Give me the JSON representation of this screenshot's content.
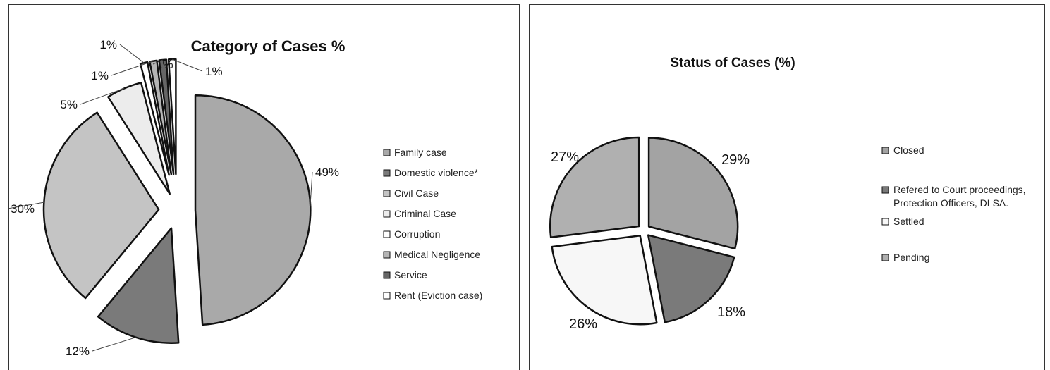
{
  "chart_data": [
    {
      "type": "pie",
      "title": "Category of Cases %",
      "legend_position": "right",
      "slices": [
        {
          "name": "Family case",
          "value": 49,
          "label": "49%",
          "color": "#a9a9a9"
        },
        {
          "name": "Domestic violence*",
          "value": 12,
          "label": "12%",
          "color": "#7a7a7a"
        },
        {
          "name": "Civil Case",
          "value": 30,
          "label": "30%",
          "color": "#c4c4c4"
        },
        {
          "name": "Criminal Case",
          "value": 5,
          "label": "5%",
          "color": "#ececec"
        },
        {
          "name": "Corruption",
          "value": 1,
          "label": "1%",
          "color": "#ffffff"
        },
        {
          "name": "Medical Negligence",
          "value": 1,
          "label": "1%",
          "color": "#b5b5b5"
        },
        {
          "name": "Service",
          "value": 1,
          "label": "1%",
          "color": "#666666"
        },
        {
          "name": "Rent (Eviction case)",
          "value": 1,
          "label": "1%",
          "color": "#ffffff"
        }
      ]
    },
    {
      "type": "pie",
      "title": "Status of Cases (%)",
      "legend_position": "right",
      "slices": [
        {
          "name": "Closed",
          "value": 29,
          "label": "29%",
          "color": "#a3a3a3"
        },
        {
          "name": "Refered to Court proceedings, Protection Officers, DLSA.",
          "legend_lines": [
            "Refered to Court proceedings,",
            "Protection Officers, DLSA."
          ],
          "value": 18,
          "label": "18%",
          "color": "#7a7a7a"
        },
        {
          "name": "Settled",
          "value": 26,
          "label": "26%",
          "color": "#f7f7f7"
        },
        {
          "name": "Pending",
          "value": 27,
          "label": "27%",
          "color": "#b0b0b0"
        }
      ]
    }
  ]
}
